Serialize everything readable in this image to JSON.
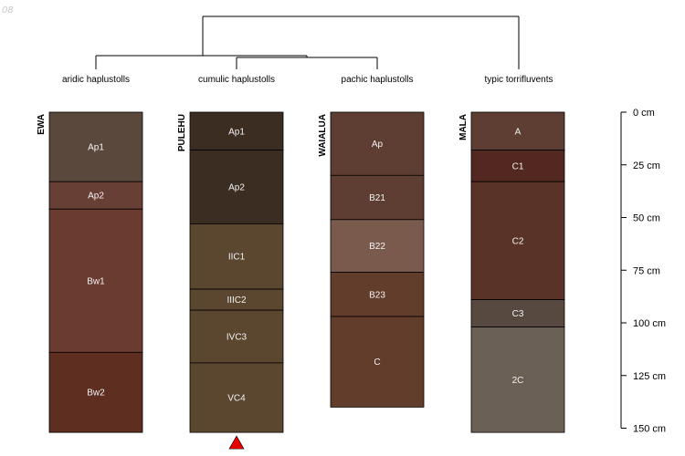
{
  "corner_text": "08",
  "chart_data": {
    "type": "soil-profile-sketch",
    "depth_unit": "cm",
    "depth_ticks": [
      0,
      25,
      50,
      75,
      100,
      125,
      150
    ],
    "depth_tick_labels": [
      "0 cm",
      "25 cm",
      "50 cm",
      "75 cm",
      "100 cm",
      "125 cm",
      "150 cm"
    ],
    "groups": [
      {
        "label": "aridic haplustolls"
      },
      {
        "label": "cumulic haplustolls"
      },
      {
        "label": "pachic haplustolls"
      },
      {
        "label": "typic torrifluvents"
      }
    ],
    "profiles": [
      {
        "name": "EWA",
        "horizons": [
          {
            "name": "Ap1",
            "top": 0,
            "bottom": 33,
            "color": "#5B483C"
          },
          {
            "name": "Ap2",
            "top": 33,
            "bottom": 46,
            "color": "#683F34"
          },
          {
            "name": "Bw1",
            "top": 46,
            "bottom": 114,
            "color": "#6A3B2F"
          },
          {
            "name": "Bw2",
            "top": 114,
            "bottom": 152,
            "color": "#5E2E20"
          }
        ]
      },
      {
        "name": "PULEHU",
        "horizons": [
          {
            "name": "Ap1",
            "top": 0,
            "bottom": 18,
            "color": "#3C2D22"
          },
          {
            "name": "Ap2",
            "top": 18,
            "bottom": 53,
            "color": "#3C2D22"
          },
          {
            "name": "IIC1",
            "top": 53,
            "bottom": 84,
            "color": "#5B4630"
          },
          {
            "name": "IIIC2",
            "top": 84,
            "bottom": 94,
            "color": "#5B4630"
          },
          {
            "name": "IVC3",
            "top": 94,
            "bottom": 119,
            "color": "#5B4630"
          },
          {
            "name": "VC4",
            "top": 119,
            "bottom": 152,
            "color": "#5B4630"
          }
        ]
      },
      {
        "name": "WAIALUA",
        "horizons": [
          {
            "name": "Ap",
            "top": 0,
            "bottom": 30,
            "color": "#5E3E33"
          },
          {
            "name": "B21",
            "top": 30,
            "bottom": 51,
            "color": "#5E3E33"
          },
          {
            "name": "B22",
            "top": 51,
            "bottom": 76,
            "color": "#7A5A4C"
          },
          {
            "name": "B23",
            "top": 76,
            "bottom": 97,
            "color": "#633D2C"
          },
          {
            "name": "C",
            "top": 97,
            "bottom": 140,
            "color": "#633D2C"
          }
        ]
      },
      {
        "name": "MALA",
        "horizons": [
          {
            "name": "A",
            "top": 0,
            "bottom": 18,
            "color": "#5E3E33"
          },
          {
            "name": "C1",
            "top": 18,
            "bottom": 33,
            "color": "#532820"
          },
          {
            "name": "C2",
            "top": 33,
            "bottom": 89,
            "color": "#5A3328"
          },
          {
            "name": "C3",
            "top": 89,
            "bottom": 102,
            "color": "#574840"
          },
          {
            "name": "2C",
            "top": 102,
            "bottom": 152,
            "color": "#6B6055"
          }
        ]
      }
    ],
    "marker": {
      "profile": "PULEHU",
      "depth": 152,
      "shape": "triangle",
      "color": "#E60000"
    }
  }
}
